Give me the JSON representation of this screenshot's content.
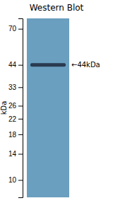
{
  "chart_data": {
    "type": "gel",
    "title": "Western Blot",
    "ylabel": "kDa",
    "log": "y",
    "ylim": [
      80,
      8
    ],
    "yticks": [
      70,
      44,
      33,
      26,
      22,
      18,
      14,
      10
    ],
    "values": [
      44
    ],
    "color": "#2a3a50",
    "annotations": [
      {
        "text": "←44kDa",
        "y": 44
      }
    ]
  }
}
